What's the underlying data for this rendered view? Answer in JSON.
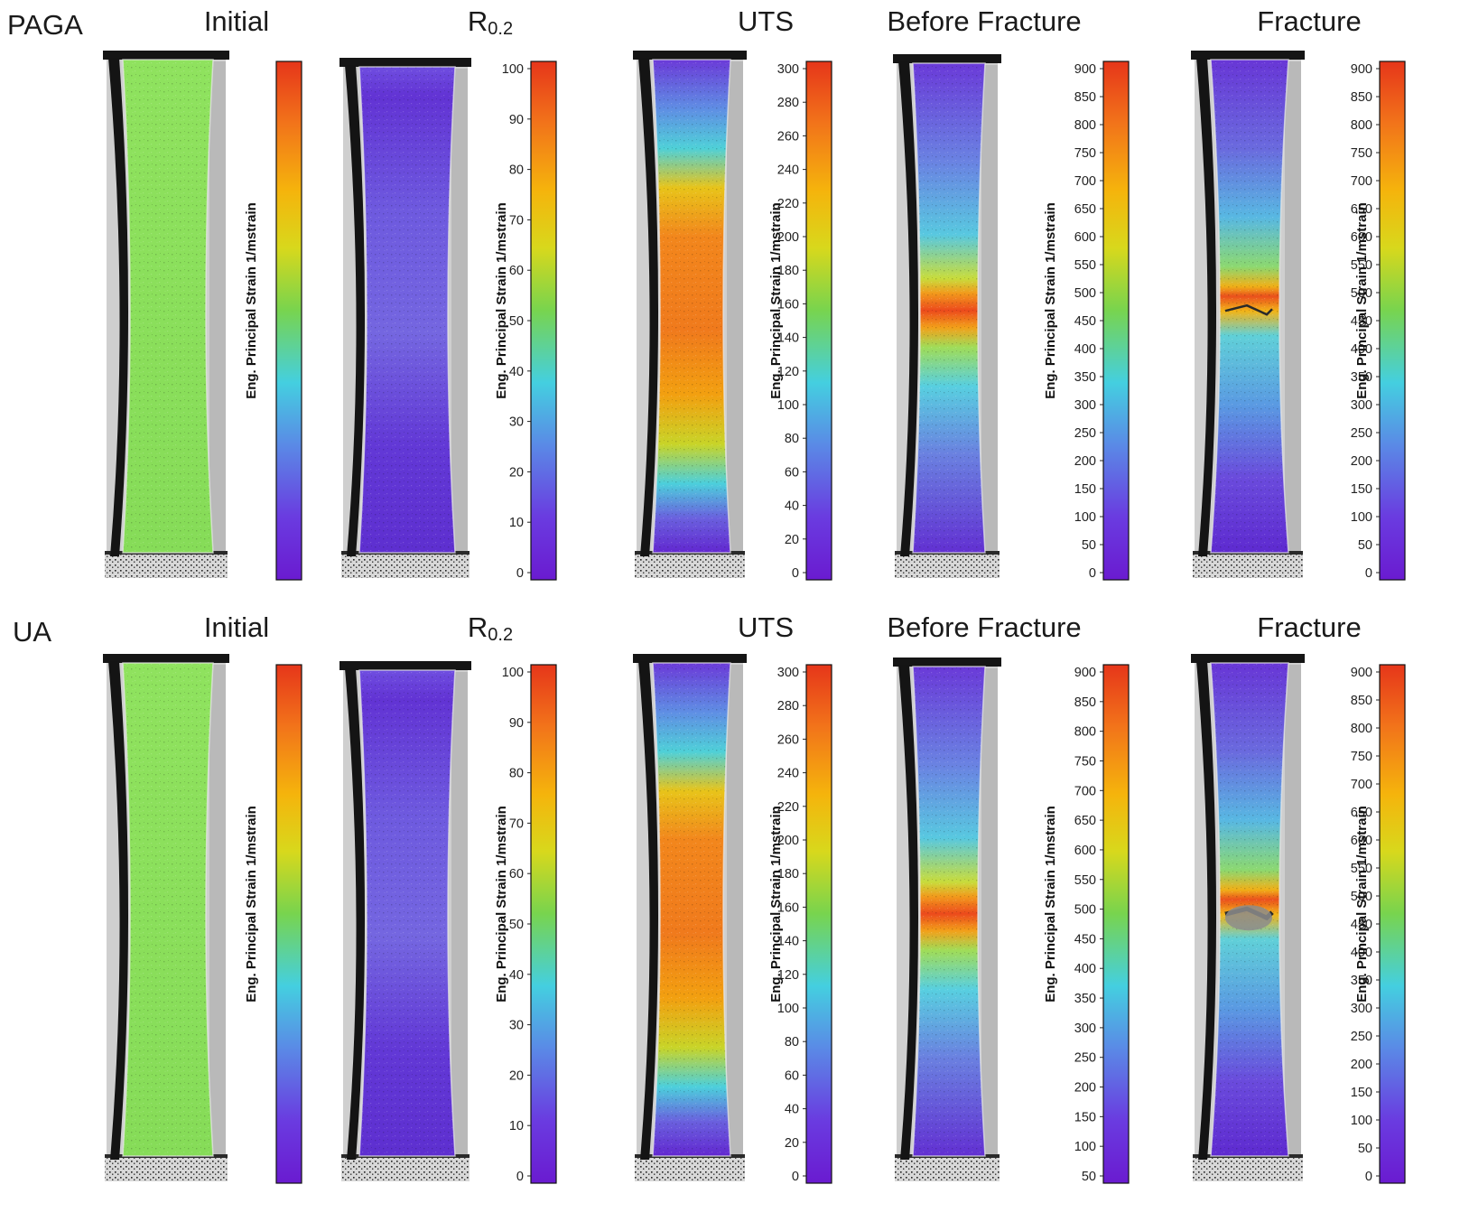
{
  "colors": {
    "initial_green": "#8ee05c",
    "low_purple": "#6a2bd6",
    "blue": "#5a86e0",
    "cyan": "#4fd2dc",
    "green": "#7cd35a",
    "yellow": "#f2c20c",
    "orange": "#f2801c",
    "red": "#e83a1c"
  },
  "colorbar_label": "Eng. Principal Strain 1/mstrain",
  "rows": [
    {
      "label": "PAGA",
      "panels": [
        {
          "title": "Initial",
          "title_sub": "",
          "map": "uniform",
          "ticks": []
        },
        {
          "title": "R",
          "title_sub": "0.2",
          "map": "low",
          "ticks": [
            "100",
            "90",
            "80",
            "70",
            "60",
            "50",
            "40",
            "30",
            "20",
            "10",
            "0"
          ]
        },
        {
          "title": "UTS",
          "title_sub": "",
          "map": "uts",
          "ticks": [
            "300",
            "280",
            "260",
            "240",
            "220",
            "200",
            "180",
            "160",
            "140",
            "120",
            "100",
            "80",
            "60",
            "40",
            "20",
            "0"
          ]
        },
        {
          "title": "Before Fracture",
          "title_sub": "",
          "map": "neck",
          "ticks": [
            "900",
            "850",
            "800",
            "750",
            "700",
            "650",
            "600",
            "550",
            "500",
            "450",
            "400",
            "350",
            "300",
            "250",
            "200",
            "150",
            "100",
            "50",
            "0"
          ]
        },
        {
          "title": "Fracture",
          "title_sub": "",
          "map": "fracture",
          "ticks": [
            "900",
            "850",
            "800",
            "750",
            "700",
            "650",
            "600",
            "550",
            "500",
            "450",
            "400",
            "350",
            "300",
            "250",
            "200",
            "150",
            "100",
            "50",
            "0"
          ]
        }
      ]
    },
    {
      "label": "UA",
      "panels": [
        {
          "title": "Initial",
          "title_sub": "",
          "map": "uniform",
          "ticks": []
        },
        {
          "title": "R",
          "title_sub": "0.2",
          "map": "low",
          "ticks": [
            "100",
            "90",
            "80",
            "70",
            "60",
            "50",
            "40",
            "30",
            "20",
            "10",
            "0"
          ]
        },
        {
          "title": "UTS",
          "title_sub": "",
          "map": "uts",
          "ticks": [
            "300",
            "280",
            "260",
            "240",
            "220",
            "200",
            "180",
            "160",
            "140",
            "120",
            "100",
            "80",
            "60",
            "40",
            "20",
            "0"
          ]
        },
        {
          "title": "Before Fracture",
          "title_sub": "",
          "map": "neck",
          "ticks": [
            "900",
            "850",
            "800",
            "750",
            "700",
            "650",
            "600",
            "550",
            "500",
            "450",
            "400",
            "350",
            "300",
            "250",
            "200",
            "150",
            "100",
            "50"
          ]
        },
        {
          "title": "Fracture",
          "title_sub": "",
          "map": "fracture",
          "ticks": [
            "900",
            "850",
            "800",
            "750",
            "700",
            "650",
            "600",
            "550",
            "500",
            "450",
            "400",
            "350",
            "300",
            "250",
            "200",
            "150",
            "100",
            "50",
            "0"
          ]
        }
      ]
    }
  ]
}
